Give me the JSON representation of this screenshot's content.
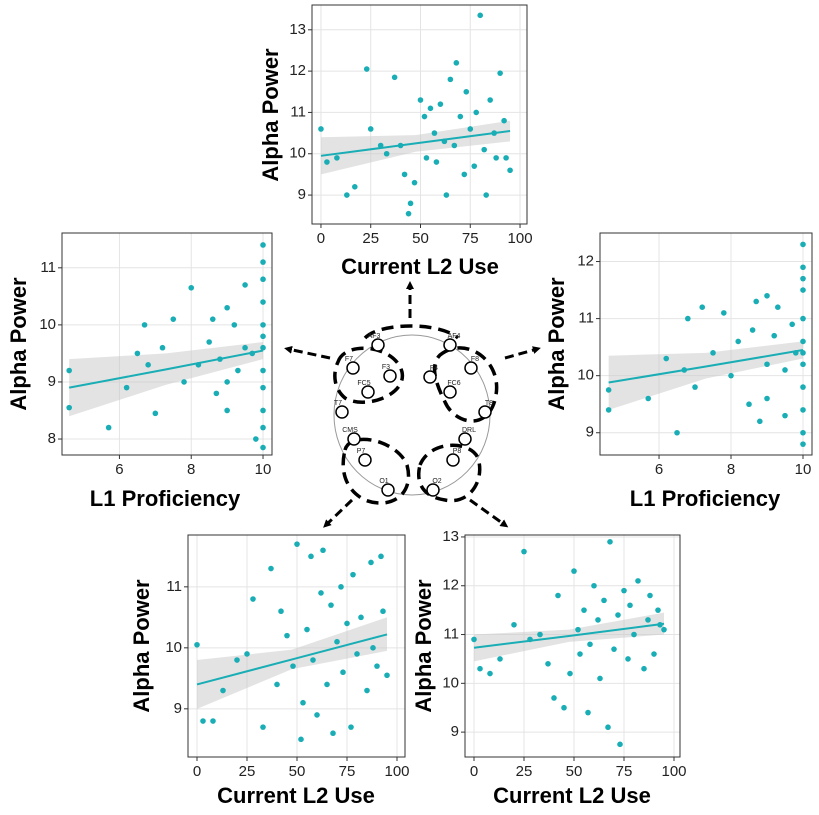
{
  "chart_data": [
    {
      "type": "scatter",
      "xlabel": "Current L2 Use",
      "ylabel": "Alpha Power",
      "color": "#19adb5",
      "grid": true,
      "xlim": [
        -4.5,
        103.5
      ],
      "ylim": [
        8.3,
        13.6
      ],
      "xticks": [
        0,
        25,
        50,
        75,
        100
      ],
      "yticks": [
        9,
        10,
        11,
        12,
        13
      ],
      "x": [
        0,
        3,
        8,
        13,
        17,
        23,
        25,
        30,
        33,
        37,
        40,
        42,
        44,
        45,
        47,
        50,
        52,
        53,
        55,
        57,
        58,
        60,
        62,
        63,
        65,
        67,
        68,
        70,
        72,
        73,
        75,
        77,
        78,
        80,
        82,
        83,
        85,
        87,
        88,
        90,
        92,
        93,
        95
      ],
      "y": [
        10.6,
        9.8,
        9.9,
        9.0,
        9.2,
        12.05,
        10.6,
        10.2,
        10.0,
        11.85,
        10.2,
        9.5,
        8.55,
        8.8,
        9.3,
        11.3,
        10.9,
        9.9,
        11.1,
        10.5,
        9.8,
        11.2,
        10.3,
        9.0,
        11.8,
        10.2,
        12.2,
        10.9,
        9.5,
        11.5,
        10.6,
        9.7,
        11.0,
        13.35,
        10.1,
        9.0,
        11.3,
        10.5,
        9.9,
        11.95,
        10.8,
        9.9,
        9.6
      ],
      "fit": {
        "x": [
          0,
          47.5,
          95
        ],
        "y": [
          9.95,
          10.25,
          10.55
        ],
        "lower": [
          9.5,
          10.05,
          10.3
        ],
        "upper": [
          10.4,
          10.45,
          10.8
        ]
      }
    },
    {
      "type": "scatter",
      "xlabel": "L1 Proficiency",
      "ylabel": "Alpha Power",
      "color": "#19adb5",
      "grid": true,
      "xlim": [
        4.4,
        10.25
      ],
      "ylim": [
        7.72,
        11.61
      ],
      "xticks": [
        6,
        8,
        10
      ],
      "yticks": [
        8,
        9,
        10,
        11
      ],
      "x": [
        4.6,
        4.6,
        5.7,
        6.2,
        6.5,
        6.7,
        6.8,
        7.0,
        7.2,
        7.5,
        7.8,
        8.0,
        8.2,
        8.5,
        8.6,
        8.7,
        8.8,
        9.0,
        9.0,
        9.0,
        9.2,
        9.3,
        9.5,
        9.5,
        9.7,
        9.8,
        10,
        10,
        10,
        10,
        10,
        10,
        10,
        10,
        10,
        10,
        10,
        10
      ],
      "y": [
        9.2,
        8.55,
        8.2,
        8.9,
        9.5,
        10.0,
        9.3,
        8.45,
        9.6,
        10.1,
        9.0,
        10.65,
        9.3,
        9.7,
        10.1,
        8.8,
        9.4,
        10.3,
        9.0,
        8.5,
        10.0,
        9.2,
        10.7,
        9.6,
        9.5,
        8.0,
        11.4,
        11.1,
        10.8,
        10.4,
        10.0,
        9.6,
        9.2,
        8.9,
        8.5,
        8.2,
        7.85,
        9.8
      ],
      "fit": {
        "x": [
          4.6,
          7.3,
          10
        ],
        "y": [
          8.9,
          9.22,
          9.55
        ],
        "lower": [
          8.4,
          8.95,
          9.4
        ],
        "upper": [
          9.4,
          9.5,
          9.7
        ]
      }
    },
    {
      "type": "scatter",
      "xlabel": "L1 Proficiency",
      "ylabel": "Alpha Power",
      "color": "#19adb5",
      "grid": true,
      "xlim": [
        4.36,
        10.25
      ],
      "ylim": [
        8.61,
        12.5
      ],
      "xticks": [
        6,
        8,
        10
      ],
      "yticks": [
        9,
        10,
        11,
        12
      ],
      "x": [
        4.6,
        4.6,
        5.7,
        6.2,
        6.5,
        6.7,
        6.8,
        7.0,
        7.2,
        7.5,
        7.8,
        8.0,
        8.2,
        8.5,
        8.6,
        8.7,
        8.8,
        9.0,
        9.0,
        9.0,
        9.2,
        9.3,
        9.5,
        9.5,
        9.7,
        9.8,
        10,
        10,
        10,
        10,
        10,
        10,
        10,
        10,
        10,
        10,
        10,
        10
      ],
      "y": [
        9.4,
        9.75,
        9.6,
        10.3,
        9.0,
        10.1,
        11.0,
        9.8,
        11.2,
        10.4,
        11.1,
        10.0,
        10.6,
        9.5,
        10.8,
        11.3,
        9.2,
        11.4,
        10.2,
        9.6,
        10.7,
        11.2,
        10.1,
        9.3,
        10.9,
        10.4,
        12.3,
        11.9,
        11.5,
        11.0,
        10.6,
        10.2,
        9.8,
        9.4,
        9.0,
        8.8,
        10.4,
        11.7
      ],
      "fit": {
        "x": [
          4.6,
          7.3,
          10
        ],
        "y": [
          9.88,
          10.16,
          10.45
        ],
        "lower": [
          9.4,
          9.95,
          10.3
        ],
        "upper": [
          10.35,
          10.4,
          10.6
        ]
      }
    },
    {
      "type": "scatter",
      "xlabel": "Current L2 Use",
      "ylabel": "Alpha Power",
      "color": "#19adb5",
      "grid": true,
      "xlim": [
        -4.5,
        104
      ],
      "ylim": [
        8.21,
        11.85
      ],
      "xticks": [
        0,
        25,
        50,
        75,
        100
      ],
      "yticks": [
        9,
        10,
        11
      ],
      "x": [
        0,
        3,
        8,
        13,
        20,
        25,
        28,
        33,
        37,
        40,
        42,
        45,
        48,
        50,
        52,
        53,
        55,
        57,
        58,
        60,
        62,
        63,
        65,
        67,
        68,
        70,
        72,
        73,
        75,
        77,
        78,
        80,
        82,
        85,
        87,
        88,
        90,
        92,
        93,
        95
      ],
      "y": [
        10.05,
        8.8,
        8.8,
        9.3,
        9.8,
        9.9,
        10.8,
        8.7,
        11.3,
        9.4,
        10.6,
        10.2,
        9.7,
        11.7,
        8.5,
        9.1,
        10.3,
        11.5,
        9.8,
        8.9,
        10.9,
        11.6,
        9.4,
        10.7,
        8.6,
        10.1,
        11.0,
        9.6,
        10.4,
        8.7,
        11.2,
        9.9,
        10.5,
        9.3,
        11.4,
        10.0,
        9.7,
        11.5,
        10.6,
        9.55
      ],
      "fit": {
        "x": [
          0,
          47.5,
          95
        ],
        "y": [
          9.4,
          9.81,
          10.22
        ],
        "lower": [
          9.0,
          9.65,
          9.95
        ],
        "upper": [
          9.8,
          9.97,
          10.5
        ]
      }
    },
    {
      "type": "scatter",
      "xlabel": "Current L2 Use",
      "ylabel": "Alpha Power",
      "color": "#19adb5",
      "grid": true,
      "xlim": [
        -4.5,
        103
      ],
      "ylim": [
        8.49,
        13.04
      ],
      "xticks": [
        0,
        25,
        50,
        75,
        100
      ],
      "yticks": [
        9,
        10,
        11,
        12,
        13
      ],
      "x": [
        0,
        3,
        8,
        13,
        20,
        25,
        28,
        33,
        37,
        40,
        42,
        45,
        48,
        50,
        52,
        53,
        55,
        57,
        58,
        60,
        62,
        63,
        65,
        67,
        68,
        70,
        72,
        73,
        75,
        77,
        78,
        80,
        82,
        85,
        87,
        88,
        90,
        92,
        93,
        95
      ],
      "y": [
        10.9,
        10.3,
        10.2,
        10.5,
        11.2,
        12.7,
        10.9,
        11.0,
        10.4,
        9.7,
        11.8,
        9.5,
        10.2,
        12.3,
        11.1,
        10.6,
        11.5,
        9.4,
        10.8,
        12.0,
        11.3,
        10.1,
        11.7,
        9.1,
        12.9,
        10.7,
        11.4,
        8.75,
        11.9,
        10.5,
        11.6,
        11.0,
        12.1,
        10.3,
        11.3,
        11.8,
        10.6,
        11.5,
        11.2,
        11.1
      ],
      "fit": {
        "x": [
          0,
          47.5,
          95
        ],
        "y": [
          10.73,
          10.97,
          11.22
        ],
        "lower": [
          10.45,
          10.85,
          11.0
        ],
        "upper": [
          11.0,
          11.1,
          11.45
        ]
      }
    }
  ],
  "diagram": {
    "electrodes": [
      "AF3",
      "AF4",
      "F7",
      "F8",
      "F3",
      "F4",
      "FC5",
      "FC6",
      "T7",
      "T8",
      "CMS",
      "DRL",
      "P7",
      "P8",
      "O1",
      "O2"
    ]
  }
}
